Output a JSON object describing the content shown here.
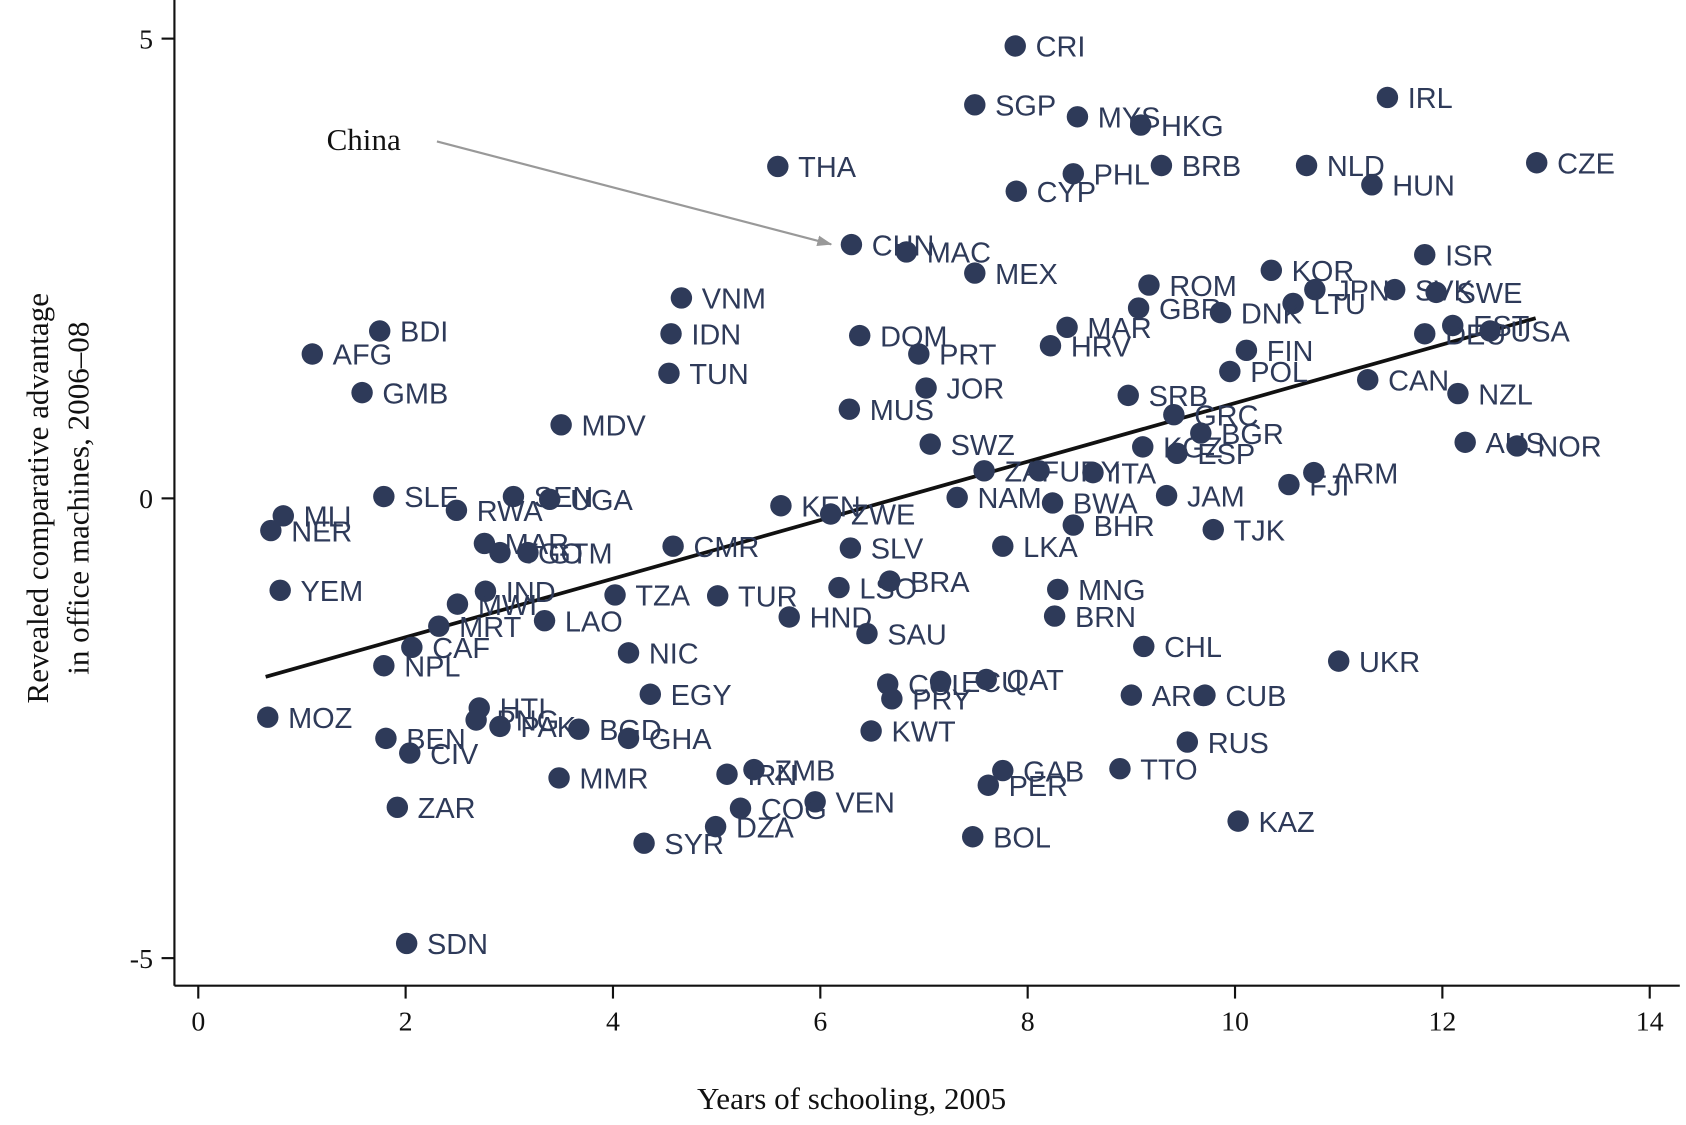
{
  "chart_data": {
    "type": "scatter",
    "xlabel": "Years of schooling, 2005",
    "ylabel": [
      "Revealed comparative advantage",
      "in office machines, 2006–08"
    ],
    "annotation": "China",
    "xlim": [
      -0.23,
      14.29
    ],
    "ylim": [
      -5.3,
      5.42
    ],
    "xticks": [
      0,
      2,
      4,
      6,
      8,
      10,
      12,
      14
    ],
    "yticks": [
      -5,
      0,
      5
    ],
    "color": "#2e3a59",
    "trendline": {
      "color": "#111111",
      "x": [
        0.65,
        12.9
      ],
      "y": [
        -1.94,
        1.96
      ]
    },
    "labels": [
      "CRI",
      "SGP",
      "MYS",
      "HKG",
      "IRL",
      "THA",
      "PHL",
      "BRB",
      "NLD",
      "CZE",
      "CYP",
      "HUN",
      "CHN",
      "MAC",
      "MEX",
      "KOR",
      "ISR",
      "VNM",
      "ROM",
      "SVK",
      "SWE",
      "JPN",
      "LTU",
      "GBR",
      "DNK",
      "BDI",
      "AFG",
      "IDN",
      "DOM",
      "MAR",
      "HRV",
      "EST",
      "USA",
      "DEU",
      "PRT",
      "FIN",
      "TUN",
      "GMB",
      "JOR",
      "CAN",
      "NZL",
      "SRB",
      "GRC",
      "POL",
      "MUS",
      "MDV",
      "BGR",
      "SWZ",
      "AUS",
      "NOR",
      "KGZ",
      "ESP",
      "ZAF",
      "FJI",
      "ARM",
      "URY",
      "ITA",
      "JAM",
      "SLE",
      "SEN",
      "UGA",
      "NAM",
      "BWA",
      "MLI",
      "RWA",
      "KEN",
      "ZWE",
      "NER",
      "BHR",
      "TJK",
      "MAR",
      "TGO",
      "GTM",
      "CMR",
      "SLV",
      "LKA",
      "BRA",
      "LSO",
      "YEM",
      "IND",
      "TZA",
      "TUR",
      "MNG",
      "MWI",
      "BRN",
      "HND",
      "LAO",
      "MRT",
      "SAU",
      "CAF",
      "CHL",
      "NIC",
      "UKR",
      "NPL",
      "COL",
      "ECU",
      "QAT",
      "EGY",
      "ARG",
      "CUB",
      "PRY",
      "HTI",
      "MOZ",
      "PAK",
      "BGD",
      "PNG",
      "KWT",
      "BEN",
      "GHA",
      "RUS",
      "CIV",
      "TTO",
      "GAB",
      "ZMB",
      "IRN",
      "MMR",
      "PER",
      "VEN",
      "ZAR",
      "COG",
      "KAZ",
      "DZA",
      "BOL",
      "SYR",
      "SDN"
    ],
    "x": [
      7.88,
      7.49,
      8.48,
      9.09,
      11.47,
      5.59,
      8.44,
      9.29,
      10.69,
      12.91,
      7.89,
      11.32,
      6.3,
      6.83,
      7.49,
      10.35,
      11.83,
      4.66,
      9.17,
      11.54,
      11.94,
      10.77,
      10.56,
      9.07,
      9.86,
      1.75,
      1.1,
      4.56,
      6.38,
      8.38,
      8.22,
      12.1,
      12.46,
      11.83,
      6.95,
      10.11,
      4.54,
      1.58,
      7.02,
      11.28,
      12.15,
      8.97,
      9.41,
      9.95,
      6.28,
      3.5,
      9.67,
      7.06,
      12.22,
      12.72,
      9.11,
      9.44,
      7.58,
      10.52,
      10.76,
      8.11,
      8.63,
      9.34,
      1.79,
      3.04,
      3.39,
      7.32,
      8.24,
      0.82,
      2.49,
      5.62,
      6.1,
      0.7,
      8.44,
      9.79,
      2.76,
      2.91,
      3.18,
      4.58,
      6.29,
      7.76,
      6.67,
      6.18,
      0.79,
      2.77,
      4.02,
      5.01,
      8.29,
      2.5,
      8.26,
      5.7,
      3.34,
      2.32,
      6.45,
      2.06,
      9.12,
      4.15,
      11.0,
      1.79,
      6.65,
      7.16,
      7.6,
      4.36,
      9.0,
      9.71,
      6.69,
      2.71,
      0.67,
      2.91,
      3.67,
      2.68,
      6.49,
      1.81,
      4.15,
      9.54,
      2.04,
      8.89,
      7.76,
      5.36,
      5.1,
      3.48,
      7.62,
      5.95,
      1.92,
      5.23,
      10.03,
      4.99,
      7.47,
      4.3,
      2.01
    ],
    "values": [
      4.92,
      4.28,
      4.15,
      4.06,
      4.36,
      3.61,
      3.53,
      3.62,
      3.62,
      3.65,
      3.34,
      3.41,
      2.76,
      2.68,
      2.45,
      2.48,
      2.65,
      2.18,
      2.32,
      2.27,
      2.24,
      2.27,
      2.12,
      2.07,
      2.02,
      1.82,
      1.57,
      1.79,
      1.77,
      1.86,
      1.66,
      1.88,
      1.82,
      1.79,
      1.57,
      1.61,
      1.36,
      1.15,
      1.2,
      1.29,
      1.14,
      1.12,
      0.91,
      1.38,
      0.97,
      0.8,
      0.71,
      0.59,
      0.61,
      0.57,
      0.56,
      0.49,
      0.3,
      0.15,
      0.28,
      0.3,
      0.28,
      0.03,
      0.02,
      0.02,
      -0.01,
      0.01,
      -0.05,
      -0.19,
      -0.13,
      -0.08,
      -0.17,
      -0.35,
      -0.29,
      -0.34,
      -0.49,
      -0.59,
      -0.59,
      -0.52,
      -0.54,
      -0.52,
      -0.9,
      -0.97,
      -1.0,
      -1.01,
      -1.05,
      -1.06,
      -0.99,
      -1.15,
      -1.28,
      -1.29,
      -1.33,
      -1.39,
      -1.47,
      -1.62,
      -1.61,
      -1.68,
      -1.77,
      -1.82,
      -2.02,
      -1.99,
      -1.97,
      -2.13,
      -2.14,
      -2.14,
      -2.18,
      -2.28,
      -2.38,
      -2.48,
      -2.51,
      -2.41,
      -2.53,
      -2.61,
      -2.61,
      -2.65,
      -2.77,
      -2.94,
      -2.96,
      -2.95,
      -3.0,
      -3.04,
      -3.12,
      -3.3,
      -3.36,
      -3.37,
      -3.51,
      -3.57,
      -3.68,
      -3.75,
      -4.84
    ]
  }
}
